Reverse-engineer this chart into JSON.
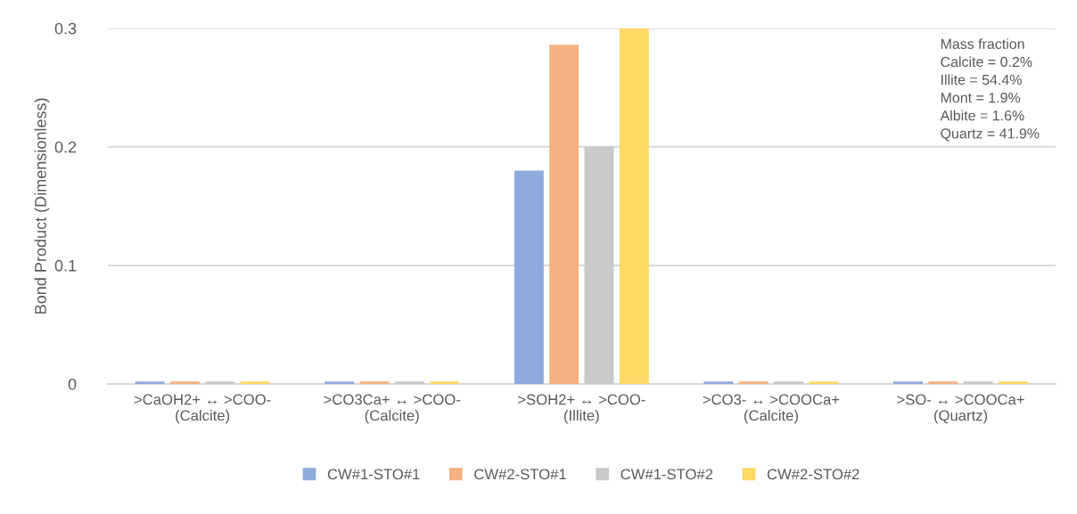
{
  "chart_data": {
    "type": "bar",
    "ylabel": "Bond Product (Dimensionless)",
    "categories": [
      ">CaOH2+ ↔ >COO-\n(Calcite)",
      ">CO3Ca+ ↔ >COO-\n(Calcite)",
      ">SOH2+ ↔ >COO-\n(Illite)",
      ">CO3- ↔ >COOCa+\n(Calcite)",
      ">SO- ↔ >COOCa+\n(Quartz)"
    ],
    "series": [
      {
        "name": "CW#1-STO#1",
        "color": "#8faadc",
        "values": [
          0.002,
          0.002,
          0.18,
          0.002,
          0.002
        ]
      },
      {
        "name": "CW#2-STO#1",
        "color": "#f4b183",
        "values": [
          0.002,
          0.002,
          0.286,
          0.002,
          0.002
        ]
      },
      {
        "name": "CW#1-STO#2",
        "color": "#c9c9c9",
        "values": [
          0.002,
          0.002,
          0.2,
          0.002,
          0.002
        ]
      },
      {
        "name": "CW#2-STO#2",
        "color": "#ffd966",
        "values": [
          0.002,
          0.002,
          0.3,
          0.002,
          0.002
        ]
      }
    ],
    "ylim": [
      0,
      0.3
    ],
    "yticks": [
      {
        "value": 0,
        "label": "0"
      },
      0.1,
      0.2,
      0.3
    ],
    "grid": "y",
    "legend": "bottom",
    "annotations": [
      "Mass fraction\nCalcite = 0.2%\nIllite = 54.4%\nMont = 1.9%\nAlbite = 1.6%\nQuartz = 41.9%"
    ]
  }
}
